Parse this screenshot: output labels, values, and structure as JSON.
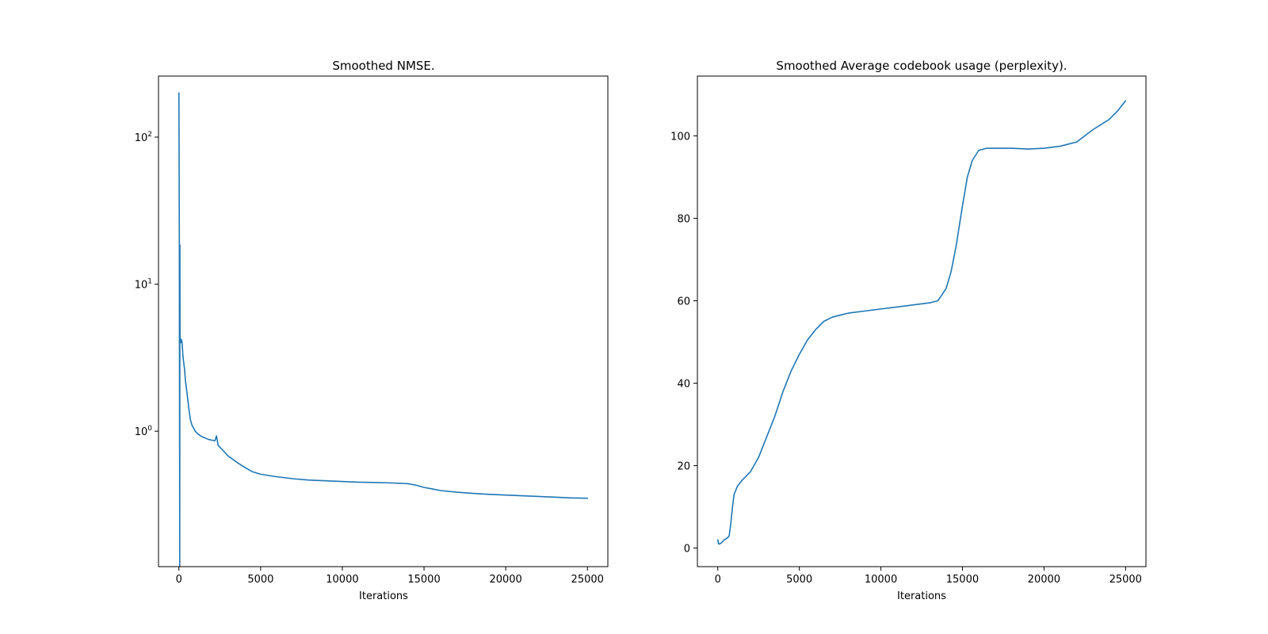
{
  "chart_data": [
    {
      "type": "line",
      "title": "Smoothed NMSE.",
      "xlabel": "Iterations",
      "ylabel": "",
      "yscale": "log",
      "xlim": [
        -1250,
        26250
      ],
      "ylim": [
        0.12,
        260
      ],
      "x_ticks": [
        0,
        5000,
        10000,
        15000,
        20000,
        25000
      ],
      "x_tick_labels": [
        "0",
        "5000",
        "10000",
        "15000",
        "20000",
        "25000"
      ],
      "y_ticks": [
        1,
        10,
        100
      ],
      "y_tick_labels": [
        {
          "base": "10",
          "exp": "0"
        },
        {
          "base": "10",
          "exp": "1"
        },
        {
          "base": "10",
          "exp": "2"
        }
      ],
      "grid": false,
      "color": "#1f77b4",
      "series": [
        {
          "x": [
            0,
            25,
            50,
            60,
            70,
            80,
            100,
            125,
            150,
            175,
            200,
            250,
            300,
            350,
            400,
            500,
            600,
            700,
            800,
            1000,
            1200,
            1400,
            1600,
            1800,
            2000,
            2200,
            2300,
            2400,
            2600,
            2800,
            3000,
            3500,
            4000,
            4500,
            5000,
            5500,
            6000,
            7000,
            8000,
            9000,
            10000,
            11000,
            12000,
            13000,
            14000,
            14500,
            15000,
            15500,
            16000,
            17000,
            18000,
            19000,
            20000,
            21000,
            22000,
            23000,
            24000,
            25000
          ],
          "y": [
            200,
            20,
            0.12,
            18.5,
            4.2,
            4.3,
            4.1,
            4.0,
            4.2,
            4.1,
            3.9,
            3.2,
            2.9,
            2.6,
            2.2,
            1.8,
            1.45,
            1.2,
            1.1,
            1.0,
            0.95,
            0.92,
            0.9,
            0.88,
            0.87,
            0.86,
            0.93,
            0.8,
            0.76,
            0.72,
            0.68,
            0.62,
            0.57,
            0.53,
            0.51,
            0.5,
            0.49,
            0.475,
            0.465,
            0.46,
            0.455,
            0.45,
            0.448,
            0.445,
            0.44,
            0.43,
            0.415,
            0.405,
            0.395,
            0.385,
            0.378,
            0.372,
            0.368,
            0.364,
            0.36,
            0.356,
            0.352,
            0.35
          ]
        }
      ]
    },
    {
      "type": "line",
      "title": "Smoothed Average codebook usage (perplexity).",
      "xlabel": "Iterations",
      "ylabel": "",
      "yscale": "linear",
      "xlim": [
        -1250,
        26250
      ],
      "ylim": [
        -4.5,
        114.5
      ],
      "x_ticks": [
        0,
        5000,
        10000,
        15000,
        20000,
        25000
      ],
      "x_tick_labels": [
        "0",
        "5000",
        "10000",
        "15000",
        "20000",
        "25000"
      ],
      "y_ticks": [
        0,
        20,
        40,
        60,
        80,
        100
      ],
      "y_tick_labels": [
        "0",
        "20",
        "40",
        "60",
        "80",
        "100"
      ],
      "grid": false,
      "color": "#1f77b4",
      "series": [
        {
          "x": [
            0,
            50,
            100,
            200,
            400,
            600,
            700,
            800,
            900,
            1000,
            1200,
            1500,
            2000,
            2500,
            3000,
            3500,
            4000,
            4500,
            5000,
            5500,
            6000,
            6500,
            7000,
            7500,
            8000,
            9000,
            10000,
            11000,
            12000,
            13000,
            13500,
            14000,
            14300,
            14600,
            15000,
            15300,
            15600,
            16000,
            16500,
            17000,
            18000,
            19000,
            20000,
            21000,
            21500,
            22000,
            22500,
            23000,
            24000,
            24500,
            25000
          ],
          "y": [
            2,
            1,
            1,
            1.2,
            2,
            2.5,
            3,
            6,
            10,
            13,
            15,
            16.5,
            18.5,
            22,
            27,
            32,
            38,
            43,
            47,
            50.5,
            53,
            55,
            56,
            56.5,
            57,
            57.5,
            58,
            58.5,
            59,
            59.5,
            60,
            63,
            67,
            73,
            83,
            90,
            94,
            96.5,
            97,
            97,
            97,
            96.8,
            97,
            97.5,
            98,
            98.5,
            100,
            101.5,
            104,
            106,
            108.5
          ]
        }
      ]
    }
  ]
}
